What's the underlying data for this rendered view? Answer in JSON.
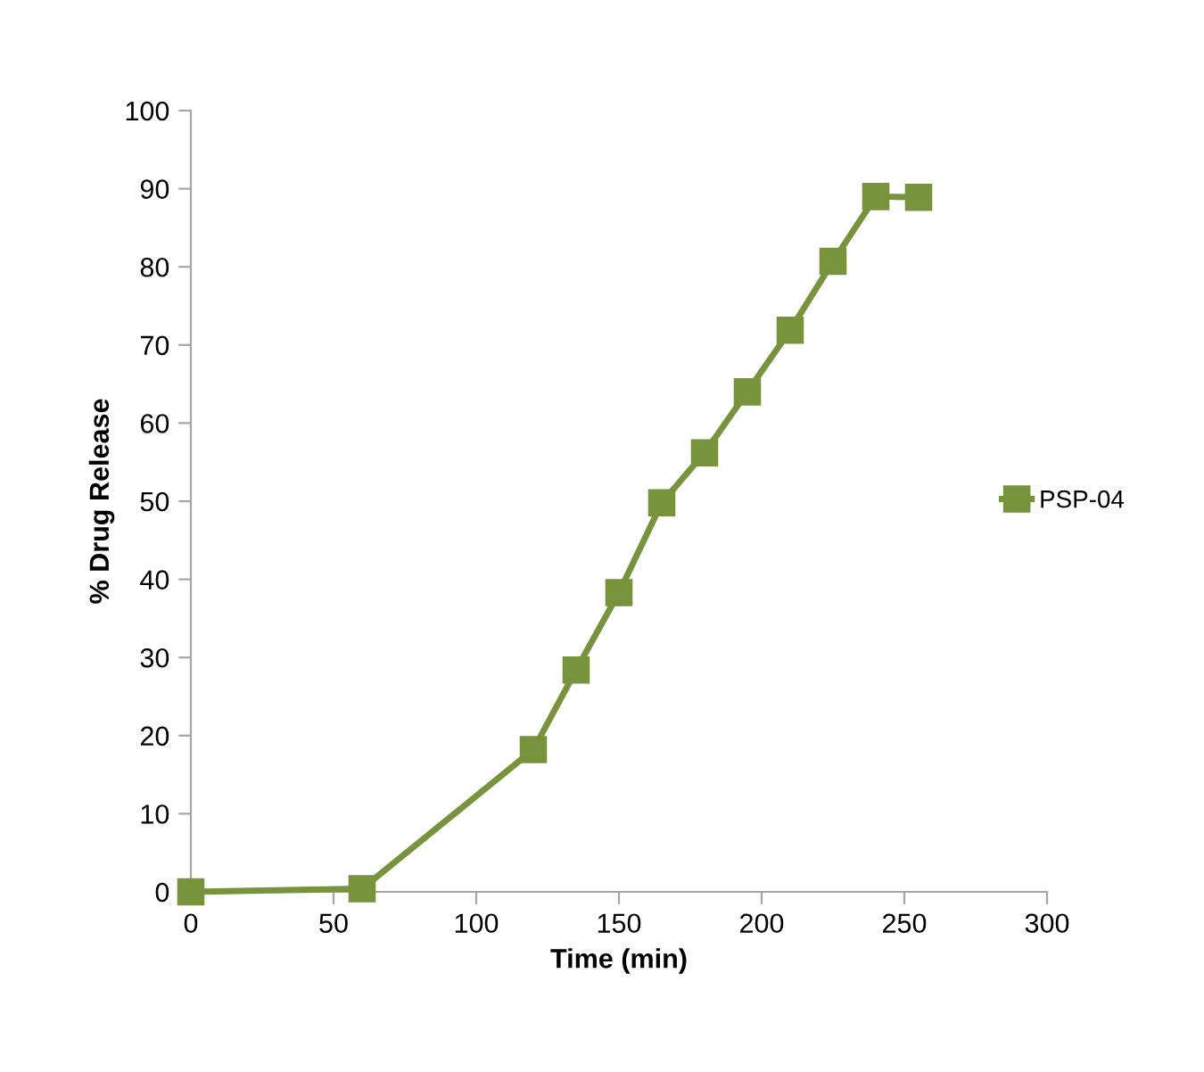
{
  "chart_data": {
    "type": "line",
    "xlabel": "Time (min)",
    "ylabel": "% Drug Release",
    "x": [
      0,
      60,
      120,
      135,
      150,
      165,
      180,
      195,
      210,
      225,
      240,
      255
    ],
    "series": [
      {
        "name": "PSP-04",
        "color": "#77933c",
        "values": [
          0,
          0.4,
          18.2,
          28.4,
          38.3,
          49.8,
          56.2,
          64.0,
          71.9,
          80.7,
          89.0,
          88.9
        ]
      }
    ],
    "xlim": [
      0,
      300
    ],
    "xticks": [
      0,
      50,
      100,
      150,
      200,
      250,
      300
    ],
    "ylim": [
      0,
      100
    ],
    "yticks": [
      0,
      10,
      20,
      30,
      40,
      50,
      60,
      70,
      80,
      90,
      100
    ],
    "grid": false,
    "legend": "right",
    "marker": "square",
    "line_style": "solid"
  }
}
